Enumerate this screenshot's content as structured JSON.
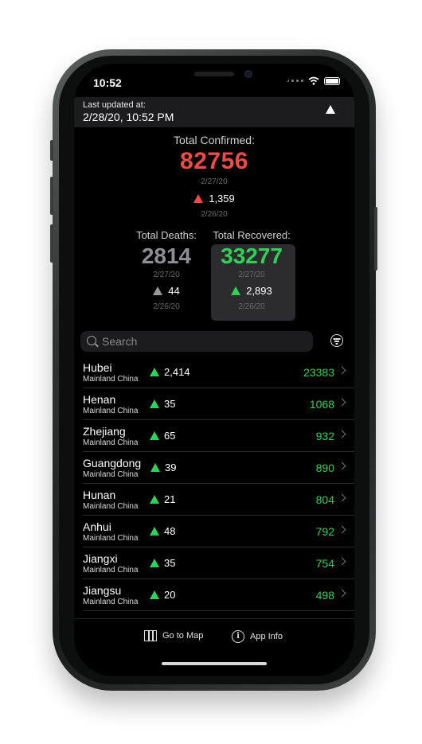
{
  "status": {
    "time": "10:52"
  },
  "header": {
    "updated_label": "Last updated at:",
    "updated_value": "2/28/20, 10:52 PM"
  },
  "confirmed": {
    "label": "Total Confirmed:",
    "value": "82756",
    "date": "2/27/20",
    "change": "1,359",
    "change_date": "2/26/20"
  },
  "deaths": {
    "label": "Total Deaths:",
    "value": "2814",
    "date": "2/27/20",
    "change": "44",
    "change_date": "2/26/20"
  },
  "recovered": {
    "label": "Total Recovered:",
    "value": "33277",
    "date": "2/27/20",
    "change": "2,893",
    "change_date": "2/26/20"
  },
  "search": {
    "placeholder": "Search"
  },
  "regions": [
    {
      "name": "Hubei",
      "region": "Mainland China",
      "delta": "2,414",
      "total": "23383"
    },
    {
      "name": "Henan",
      "region": "Mainland China",
      "delta": "35",
      "total": "1068"
    },
    {
      "name": "Zhejiang",
      "region": "Mainland China",
      "delta": "65",
      "total": "932"
    },
    {
      "name": "Guangdong",
      "region": "Mainland China",
      "delta": "39",
      "total": "890"
    },
    {
      "name": "Hunan",
      "region": "Mainland China",
      "delta": "21",
      "total": "804"
    },
    {
      "name": "Anhui",
      "region": "Mainland China",
      "delta": "48",
      "total": "792"
    },
    {
      "name": "Jiangxi",
      "region": "Mainland China",
      "delta": "35",
      "total": "754"
    },
    {
      "name": "Jiangsu",
      "region": "Mainland China",
      "delta": "20",
      "total": "498"
    }
  ],
  "tabbar": {
    "map_label": "Go to Map",
    "info_label": "App Info"
  },
  "colors": {
    "confirmed": "#f04a45",
    "deaths": "#8e8e93",
    "recovered": "#30d158"
  }
}
